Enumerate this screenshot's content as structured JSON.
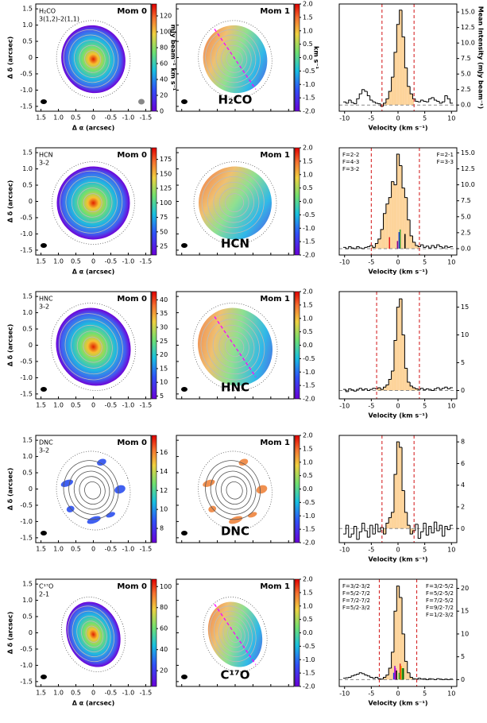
{
  "map_axes": {
    "xlim": [
      1.65,
      -1.65
    ],
    "ylim": [
      -1.65,
      1.65
    ],
    "xticks": [
      1.5,
      {
        "value": 1,
        "label": "1.0"
      },
      0.5,
      0,
      -0.5,
      {
        "value": -1,
        "label": "-1.0"
      },
      -1.5
    ],
    "yticks": [
      1.5,
      {
        "value": 1,
        "label": "1.0"
      },
      0.5,
      0,
      -0.5,
      {
        "value": -1,
        "label": "-1.0"
      },
      -1.5
    ]
  },
  "chart_data": [
    {
      "type": "map",
      "title": "Mom 0",
      "label": [
        "H₂CO",
        "3(1,2)-2(1,1)"
      ],
      "tick_labels": true,
      "xlabel": "Δ α (arcsec)",
      "ylabel": "Δ δ (arcsec)",
      "cmap": "rainbow",
      "clim": [
        0,
        135
      ],
      "cticks": [
        0,
        20,
        40,
        60,
        80,
        100,
        120
      ],
      "clabel": "mJy beam⁻¹ km s⁻¹"
    },
    {
      "type": "map",
      "title": "Mom 1",
      "label": "H₂CO",
      "tick_labels": false,
      "cmap": "rainbow",
      "clim": [
        -2,
        2
      ],
      "cticks": [
        {
          "value": 2,
          "label": "2.0"
        },
        1.5,
        {
          "value": 1,
          "label": "1.0"
        },
        0.5,
        {
          "value": 0,
          "label": "0.0"
        },
        -0.5,
        {
          "value": -1,
          "label": "-1.0"
        },
        -1.5,
        {
          "value": -2,
          "label": "-2.0"
        }
      ],
      "clabel": "km s⁻¹"
    },
    {
      "type": "step",
      "x": [
        -10,
        -9.5,
        -9,
        -8.5,
        -8,
        -7.5,
        -7,
        -6.5,
        -6,
        -5.5,
        -5,
        -4.5,
        -4,
        -3.5,
        -3,
        -2.5,
        -2,
        -1.5,
        -1,
        -0.5,
        0,
        0.5,
        1,
        1.5,
        2,
        2.5,
        3,
        3.5,
        4,
        4.5,
        5,
        5.5,
        6,
        6.5,
        7,
        7.5,
        8,
        8.5,
        9,
        9.5,
        10
      ],
      "values": [
        0.5,
        0.3,
        0.8,
        0.4,
        0.2,
        1.0,
        1.8,
        2.5,
        2.2,
        1.5,
        0.8,
        0.5,
        0.3,
        0.2,
        -0.2,
        0.3,
        1.0,
        2.2,
        4.5,
        8.5,
        13,
        15.3,
        11,
        6,
        3,
        1.8,
        1,
        0.6,
        0.5,
        0.8,
        0.6,
        0.5,
        1,
        1.2,
        0.8,
        0.6,
        0.3,
        0.5,
        1.5,
        1,
        0.3
      ],
      "color": "#fdd49b",
      "window": [
        -3,
        3
      ],
      "window_color": "#d62728",
      "baseline": 0,
      "xlim": [
        -11,
        11
      ],
      "xticks": [
        -10,
        -5,
        0,
        5,
        10
      ],
      "xlabel": "Velocity (km s⁻¹)",
      "ylim": [
        -1,
        16.3
      ],
      "yticks": [
        {
          "value": 0,
          "label": "0.0"
        },
        2.5,
        {
          "value": 5,
          "label": "5.0"
        },
        7.5,
        {
          "value": 10,
          "label": "10.0"
        },
        12.5,
        {
          "value": 15,
          "label": "15.0"
        }
      ],
      "ylabel": "Mean Intensity (mJy beam⁻¹)"
    },
    {
      "type": "map",
      "title": "Mom 0",
      "label": [
        "HCN",
        "3-2"
      ],
      "tick_labels": true,
      "xlabel": "Δ α (arcsec)",
      "ylabel": "Δ δ (arcsec)",
      "cmap": "rainbow",
      "clim": [
        10,
        195
      ],
      "cticks": [
        25,
        50,
        75,
        100,
        125,
        150,
        175
      ]
    },
    {
      "type": "map",
      "title": "Mom 1",
      "label": "HCN",
      "tick_labels": false,
      "cmap": "rainbow",
      "clim": [
        -2,
        2
      ],
      "cticks": [
        {
          "value": 2,
          "label": "2.0"
        },
        1.5,
        {
          "value": 1,
          "label": "1.0"
        },
        0.5,
        {
          "value": 0,
          "label": "0.0"
        },
        -0.5,
        {
          "value": -1,
          "label": "-1.0"
        },
        -1.5,
        {
          "value": -2,
          "label": "-2.0"
        }
      ]
    },
    {
      "type": "step",
      "x": [
        -10,
        -9.5,
        -9,
        -8.5,
        -8,
        -7.5,
        -7,
        -6.5,
        -6,
        -5.5,
        -5,
        -4.5,
        -4,
        -3.5,
        -3,
        -2.5,
        -2,
        -1.5,
        -1,
        -0.5,
        0,
        0.5,
        1,
        1.5,
        2,
        2.5,
        3,
        3.5,
        4,
        4.5,
        5,
        5.5,
        6,
        6.5,
        7,
        7.5,
        8,
        8.5,
        9,
        9.5,
        10
      ],
      "values": [
        0.2,
        0,
        0.3,
        0.1,
        0,
        0.3,
        0.1,
        0,
        0.2,
        0.3,
        0.5,
        0.2,
        0.8,
        1.5,
        3,
        5.5,
        7,
        8,
        10.5,
        10,
        14.8,
        13,
        9.5,
        8,
        4.5,
        2,
        1,
        0.5,
        0.3,
        0.6,
        0.2,
        0.4,
        0.1,
        0.5,
        0.2,
        0.6,
        0.3,
        0.1,
        0.4,
        0.2,
        0.3
      ],
      "color": "#fdd49b",
      "window": [
        -5,
        4
      ],
      "window_color": "#d62728",
      "baseline": 0,
      "xlim": [
        -11,
        11
      ],
      "xticks": [
        -10,
        -5,
        0,
        5,
        10
      ],
      "xlabel": "Velocity (km s⁻¹)",
      "ylim": [
        -1,
        15.8
      ],
      "yticks": [
        {
          "value": 0,
          "label": "0.0"
        },
        2.5,
        {
          "value": 5,
          "label": "5.0"
        },
        7.5,
        {
          "value": 10,
          "label": "10.0"
        },
        12.5,
        {
          "value": 15,
          "label": "15.0"
        }
      ],
      "hyperfine": [
        {
          "label": "F=2-2",
          "color": "#e41a1c",
          "x": -1.6,
          "height": 1.8,
          "side": "left"
        },
        {
          "label": "F=4-3",
          "color": "#2ca02c",
          "x": 0.4,
          "height": 3,
          "side": "left"
        },
        {
          "label": "F=3-2",
          "color": "#1f3fd6",
          "x": 0.2,
          "height": 2.6,
          "side": "left"
        },
        {
          "label": "F=2-1",
          "color": "#8b008b",
          "x": -0.1,
          "height": 1.2,
          "side": "right"
        },
        {
          "label": "F=3-3",
          "color": "#000000",
          "x": 1.3,
          "height": 2.3,
          "side": "right"
        }
      ]
    },
    {
      "type": "map",
      "title": "Mom 0",
      "label": [
        "HNC",
        "3-2"
      ],
      "tick_labels": true,
      "ylabel": "Δ δ (arcsec)",
      "cmap": "rainbow",
      "clim": [
        4,
        43
      ],
      "cticks": [
        5,
        10,
        15,
        20,
        25,
        30,
        35,
        40
      ]
    },
    {
      "type": "map",
      "title": "Mom 1",
      "label": "HNC",
      "tick_labels": false,
      "cmap": "rainbow",
      "clim": [
        -2,
        2
      ],
      "cticks": [
        {
          "value": 2,
          "label": "2.0"
        },
        1.5,
        {
          "value": 1,
          "label": "1.0"
        },
        0.5,
        {
          "value": 0,
          "label": "0.0"
        },
        -0.5,
        {
          "value": -1,
          "label": "-1.0"
        },
        -1.5,
        {
          "value": -2,
          "label": "-2.0"
        }
      ]
    },
    {
      "type": "step",
      "x": [
        -10,
        -9.5,
        -9,
        -8.5,
        -8,
        -7.5,
        -7,
        -6.5,
        -6,
        -5.5,
        -5,
        -4.5,
        -4,
        -3.5,
        -3,
        -2.5,
        -2,
        -1.5,
        -1,
        -0.5,
        0,
        0.5,
        1,
        1.5,
        2,
        2.5,
        3,
        3.5,
        4,
        4.5,
        5,
        5.5,
        6,
        6.5,
        7,
        7.5,
        8,
        8.5,
        9,
        9.5,
        10
      ],
      "values": [
        0.2,
        -0.2,
        0.3,
        0.1,
        -0.1,
        0.2,
        0.4,
        0.1,
        0.3,
        0,
        0.2,
        0.4,
        0.3,
        0.5,
        0.2,
        0.6,
        1,
        2,
        3.5,
        9,
        15,
        16.5,
        10,
        4,
        1.5,
        0.8,
        0.5,
        0.3,
        0.2,
        0.4,
        0.1,
        0.3,
        0.2,
        0,
        0.3,
        0.5,
        0.2,
        0.4,
        0.6,
        0.3,
        0.5
      ],
      "color": "#fdd49b",
      "window": [
        -4,
        4
      ],
      "window_color": "#d62728",
      "baseline": 0,
      "xlim": [
        -11,
        11
      ],
      "xticks": [
        -10,
        -5,
        0,
        5,
        10
      ],
      "xlabel": "Velocity (km s⁻¹)",
      "ylim": [
        -1.5,
        17.8
      ],
      "yticks": [
        0,
        5,
        10,
        15
      ]
    },
    {
      "type": "map",
      "title": "Mom 0",
      "label": [
        "DNC",
        "3-2"
      ],
      "tick_labels": true,
      "ylabel": "Δ δ (arcsec)",
      "cmap": "rainbow",
      "clim": [
        6.5,
        17.8
      ],
      "cticks": [
        8,
        10,
        12,
        14,
        16
      ]
    },
    {
      "type": "map",
      "title": "Mom 1",
      "label": "DNC",
      "tick_labels": false,
      "cmap": "rainbow",
      "clim": [
        -2,
        2
      ],
      "cticks": [
        {
          "value": 2,
          "label": "2.0"
        },
        1.5,
        {
          "value": 1,
          "label": "1.0"
        },
        0.5,
        {
          "value": 0,
          "label": "0.0"
        },
        -0.5,
        {
          "value": -1,
          "label": "-1.0"
        },
        -1.5,
        {
          "value": -2,
          "label": "-2.0"
        }
      ]
    },
    {
      "type": "step",
      "x": [
        -10,
        -9.5,
        -9,
        -8.5,
        -8,
        -7.5,
        -7,
        -6.5,
        -6,
        -5.5,
        -5,
        -4.5,
        -4,
        -3.5,
        -3,
        -2.5,
        -2,
        -1.5,
        -1,
        -0.5,
        0,
        0.5,
        1,
        1.5,
        2,
        2.5,
        3,
        3.5,
        4,
        4.5,
        5,
        5.5,
        6,
        6.5,
        7,
        7.5,
        8,
        8.5,
        9,
        9.5,
        10
      ],
      "values": [
        -0.5,
        0.3,
        -0.8,
        -0.5,
        0.2,
        -1,
        -0.3,
        0.5,
        -0.2,
        -0.8,
        0.3,
        -0.5,
        0.4,
        -0.3,
        0.1,
        -0.5,
        0.5,
        1,
        1.5,
        5,
        8,
        7.5,
        3.5,
        1.5,
        0.3,
        -0.5,
        -0.2,
        0.4,
        -0.9,
        -0.3,
        0.5,
        -0.6,
        0.2,
        -0.4,
        0.6,
        -0.2,
        0.3,
        -0.7,
        0.2,
        -0.1,
        0.3
      ],
      "color": "#fdd49b",
      "window": [
        -3,
        3
      ],
      "window_color": "#d62728",
      "baseline": 0,
      "xlim": [
        -11,
        11
      ],
      "xticks": [
        -10,
        -5,
        0,
        5,
        10
      ],
      "xlabel": "Velocity (km s⁻¹)",
      "ylim": [
        -1.3,
        8.6
      ],
      "yticks": [
        0,
        2,
        4,
        6,
        8
      ]
    },
    {
      "type": "map",
      "title": "Mom 0",
      "label": [
        "C¹⁷O",
        "2-1"
      ],
      "tick_labels": true,
      "xlabel": "Δ α (arcsec)",
      "ylabel": "Δ δ (arcsec)",
      "cmap": "rainbow",
      "clim": [
        5,
        107
      ],
      "cticks": [
        20,
        40,
        60,
        80,
        100
      ]
    },
    {
      "type": "map",
      "title": "Mom 1",
      "label": "C¹⁷O",
      "tick_labels": false,
      "cmap": "rainbow",
      "clim": [
        -2,
        2
      ],
      "cticks": [
        {
          "value": 2,
          "label": "2.0"
        },
        1.5,
        {
          "value": 1,
          "label": "1.0"
        },
        0.5,
        {
          "value": 0,
          "label": "0.0"
        },
        -0.5,
        {
          "value": -1,
          "label": "-1.0"
        },
        -1.5,
        {
          "value": -2,
          "label": "-2.0"
        }
      ]
    },
    {
      "type": "step",
      "x": [
        -10,
        -9.5,
        -9,
        -8.5,
        -8,
        -7.5,
        -7,
        -6.5,
        -6,
        -5.5,
        -5,
        -4.5,
        -4,
        -3.5,
        -3,
        -2.5,
        -2,
        -1.5,
        -1,
        -0.5,
        0,
        0.5,
        1,
        1.5,
        2,
        2.5,
        3,
        3.5,
        4,
        4.5,
        5,
        5.5,
        6,
        6.5,
        7,
        7.5,
        8,
        8.5,
        9,
        9.5,
        10
      ],
      "values": [
        0.3,
        0.4,
        0.5,
        0.8,
        1,
        1.2,
        1.5,
        1.3,
        1,
        0.8,
        0.5,
        0.3,
        0.5,
        0.2,
        0.1,
        0.5,
        1,
        2.5,
        6,
        15,
        20.5,
        18,
        10,
        4,
        1.5,
        0.5,
        0.2,
        0.1,
        0.3,
        0.1,
        0.2,
        0,
        0.2,
        0.1,
        0,
        0.2,
        0.1,
        0,
        0.1,
        0,
        0.1
      ],
      "color": "#fdd49b",
      "window": [
        -3.5,
        3.5
      ],
      "window_color": "#d62728",
      "baseline": 0,
      "xlim": [
        -11,
        11
      ],
      "xticks": [
        -10,
        -5,
        0,
        5,
        10
      ],
      "xlabel": "Velocity (km s⁻¹)",
      "ylim": [
        -1.5,
        22
      ],
      "yticks": [
        0,
        5,
        10,
        15,
        20
      ],
      "hyperfine": [
        {
          "label": "F=3/2-3/2",
          "color": "#1f3fd6",
          "x": -0.8,
          "height": 1.5,
          "side": "left"
        },
        {
          "label": "F=5/2-7/2",
          "color": "#9400d3",
          "x": -0.6,
          "height": 3,
          "side": "left"
        },
        {
          "label": "F=7/2-7/2",
          "color": "#e020e0",
          "x": -0.45,
          "height": 2.5,
          "side": "left"
        },
        {
          "label": "F=5/2-3/2",
          "color": "#000000",
          "x": -0.3,
          "height": 2,
          "side": "left"
        },
        {
          "label": "F=3/2-5/2",
          "color": "#e41a1c",
          "x": 0.4,
          "height": 3.5,
          "side": "right"
        },
        {
          "label": "F=5/2-5/2",
          "color": "#ffa500",
          "x": 0.6,
          "height": 3,
          "side": "right"
        },
        {
          "label": "F=7/2-5/2",
          "color": "#2ca02c",
          "x": 0.8,
          "height": 2.5,
          "side": "right"
        },
        {
          "label": "F=9/2-7/2",
          "color": "#006400",
          "x": 1,
          "height": 2.5,
          "side": "right"
        },
        {
          "label": "F=1/2-3/2",
          "color": "#32cd32",
          "x": 0.2,
          "height": 1.5,
          "side": "right"
        }
      ]
    }
  ]
}
